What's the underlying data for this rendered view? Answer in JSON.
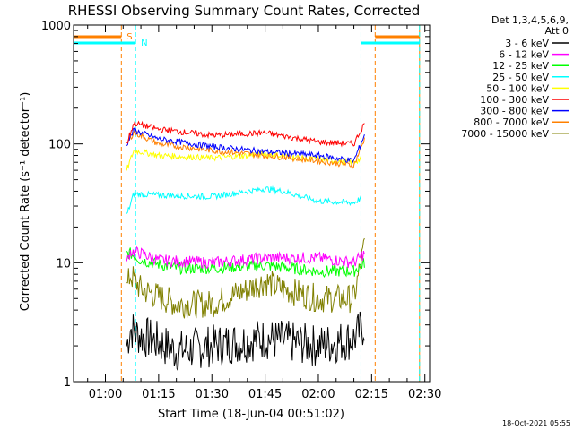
{
  "chart_data": {
    "type": "line",
    "title": "RHESSI Observing Summary Count Rates, Corrected",
    "xlabel": "Start Time (18-Jun-04 00:51:02)",
    "ylabel": "Corrected Count Rate (s⁻¹ detector⁻¹)",
    "yscale": "log",
    "ylim": [
      1,
      1000
    ],
    "xlim": [
      "00:51:02",
      "02:31:20"
    ],
    "x_ticks": [
      "01:00",
      "01:15",
      "01:30",
      "01:45",
      "02:00",
      "02:15",
      "02:30"
    ],
    "y_ticks": [
      "1",
      "10",
      "100",
      "1000"
    ],
    "legend_header": [
      "Det 1,3,4,5,6,9,",
      "Att 0"
    ],
    "legend_position": "right",
    "series": [
      {
        "name": "3 - 6 keV",
        "color": "#000000",
        "points": [
          [
            "01:06",
            2
          ],
          [
            "01:07",
            2.8
          ],
          [
            "01:09",
            2.5
          ],
          [
            "01:14",
            2.2
          ],
          [
            "01:20",
            1.8
          ],
          [
            "01:30",
            2.0
          ],
          [
            "01:45",
            2.3
          ],
          [
            "02:00",
            2.0
          ],
          [
            "02:10",
            2.3
          ],
          [
            "02:13",
            3.0
          ]
        ]
      },
      {
        "name": "6 - 12 keV",
        "color": "#ff00ff",
        "points": [
          [
            "01:06",
            10
          ],
          [
            "01:07",
            12.5
          ],
          [
            "01:10",
            12
          ],
          [
            "01:15",
            10.5
          ],
          [
            "01:30",
            10
          ],
          [
            "01:45",
            11
          ],
          [
            "02:00",
            11
          ],
          [
            "02:10",
            10
          ],
          [
            "02:13",
            12
          ]
        ]
      },
      {
        "name": "12 - 25 keV",
        "color": "#00ff00",
        "points": [
          [
            "01:06",
            12
          ],
          [
            "01:07",
            12
          ],
          [
            "01:10",
            10.5
          ],
          [
            "01:20",
            9
          ],
          [
            "01:30",
            9
          ],
          [
            "01:45",
            9.5
          ],
          [
            "02:00",
            8.5
          ],
          [
            "02:10",
            8.5
          ],
          [
            "02:13",
            10
          ]
        ]
      },
      {
        "name": "25 - 50 keV",
        "color": "#00ffff",
        "points": [
          [
            "01:06",
            25
          ],
          [
            "01:08",
            38
          ],
          [
            "01:15",
            37
          ],
          [
            "01:30",
            36
          ],
          [
            "01:45",
            42
          ],
          [
            "01:50",
            40
          ],
          [
            "02:00",
            33
          ],
          [
            "02:10",
            32
          ],
          [
            "02:12",
            35
          ]
        ]
      },
      {
        "name": "50 - 100 keV",
        "color": "#ffff00",
        "points": [
          [
            "01:06",
            60
          ],
          [
            "01:08",
            88
          ],
          [
            "01:15",
            80
          ],
          [
            "01:30",
            76
          ],
          [
            "01:45",
            82
          ],
          [
            "02:00",
            74
          ],
          [
            "02:10",
            70
          ],
          [
            "02:12",
            75
          ]
        ]
      },
      {
        "name": "100 - 300 keV",
        "color": "#ff0000",
        "points": [
          [
            "01:06",
            100
          ],
          [
            "01:08",
            150
          ],
          [
            "01:15",
            133
          ],
          [
            "01:30",
            118
          ],
          [
            "01:45",
            124
          ],
          [
            "02:00",
            104
          ],
          [
            "02:10",
            100
          ],
          [
            "02:13",
            150
          ]
        ]
      },
      {
        "name": "300 - 800 keV",
        "color": "#0000ff",
        "points": [
          [
            "01:06",
            100
          ],
          [
            "01:08",
            130
          ],
          [
            "01:15",
            110
          ],
          [
            "01:30",
            95
          ],
          [
            "01:45",
            86
          ],
          [
            "02:00",
            80
          ],
          [
            "02:10",
            72
          ],
          [
            "02:13",
            120
          ]
        ]
      },
      {
        "name": "800 - 7000 keV",
        "color": "#ff8000",
        "points": [
          [
            "01:06",
            100
          ],
          [
            "01:08",
            125
          ],
          [
            "01:15",
            100
          ],
          [
            "01:30",
            88
          ],
          [
            "01:45",
            80
          ],
          [
            "02:00",
            72
          ],
          [
            "02:10",
            66
          ],
          [
            "02:13",
            110
          ]
        ]
      },
      {
        "name": "7000 - 15000 keV",
        "color": "#808000",
        "points": [
          [
            "01:06",
            6
          ],
          [
            "01:07",
            8
          ],
          [
            "01:10",
            6
          ],
          [
            "01:20",
            4.5
          ],
          [
            "01:30",
            4.5
          ],
          [
            "01:40",
            6
          ],
          [
            "01:45",
            7
          ],
          [
            "01:50",
            6
          ],
          [
            "02:00",
            5
          ],
          [
            "02:10",
            5
          ],
          [
            "02:13",
            14
          ]
        ]
      }
    ],
    "annotations": [
      {
        "label": "S",
        "color": "#ff8000",
        "x": "01:04:30"
      },
      {
        "label": "N",
        "color": "#00ffff",
        "x": "01:08:30"
      }
    ],
    "status_intervals": {
      "saa": {
        "color": "#ff8000",
        "ranges": [
          [
            "00:51:02",
            "01:04:30"
          ],
          [
            "02:16:00",
            "02:28:30"
          ]
        ]
      },
      "night": {
        "color": "#00ffff",
        "ranges": [
          [
            "00:51:02",
            "01:08:30"
          ],
          [
            "02:12:00",
            "02:28:30"
          ]
        ]
      }
    }
  },
  "footer": {
    "timestamp": "18-Oct-2021 05:55"
  }
}
